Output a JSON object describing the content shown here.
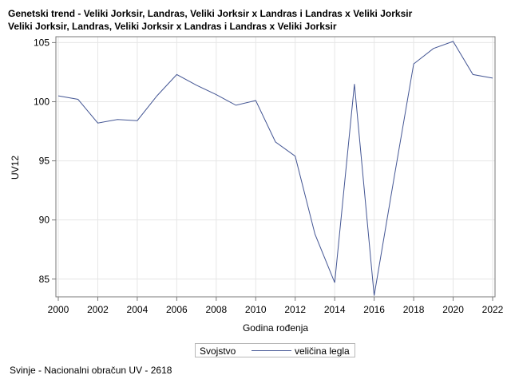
{
  "title": {
    "line1": "Genetski trend - Veliki Jorksir, Landras, Veliki Jorksir x Landras i Landras x Veliki Jorksir",
    "line2": "Veliki Jorksir, Landras, Veliki Jorksir x Landras i Landras x Veliki Jorksir"
  },
  "legend": {
    "title": "Svojstvo",
    "series_label": "veličina legla"
  },
  "footnote": "Svinje - Nacionalni obračun UV - 2618",
  "colors": {
    "series": "#445694",
    "grid": "#e6e6e6",
    "frame": "#7a7a7a"
  },
  "chart_data": {
    "type": "line",
    "title": "Genetski trend - Veliki Jorksir, Landras, Veliki Jorksir x Landras i Landras x Veliki Jorksir",
    "subtitle": "Veliki Jorksir, Landras, Veliki Jorksir x Landras i Landras x Veliki Jorksir",
    "xlabel": "Godina rođenja",
    "ylabel": "UV12",
    "xlim": [
      2000,
      2022
    ],
    "ylim": [
      83.5,
      105.5
    ],
    "xticks": [
      2000,
      2002,
      2004,
      2006,
      2008,
      2010,
      2012,
      2014,
      2016,
      2018,
      2020,
      2022
    ],
    "yticks": [
      85,
      90,
      95,
      100,
      105
    ],
    "grid": true,
    "legend_position": "bottom",
    "series": [
      {
        "name": "veličina legla",
        "x": [
          2000,
          2001,
          2002,
          2003,
          2004,
          2005,
          2006,
          2007,
          2008,
          2009,
          2010,
          2011,
          2012,
          2013,
          2014,
          2015,
          2016,
          2017,
          2018,
          2019,
          2020,
          2021,
          2022
        ],
        "y": [
          100.5,
          100.2,
          98.2,
          98.5,
          98.4,
          100.5,
          102.3,
          101.4,
          100.6,
          99.7,
          100.1,
          96.6,
          95.4,
          88.8,
          84.7,
          101.5,
          83.6,
          93.5,
          103.2,
          104.5,
          105.1,
          102.3,
          102.0
        ]
      }
    ]
  }
}
